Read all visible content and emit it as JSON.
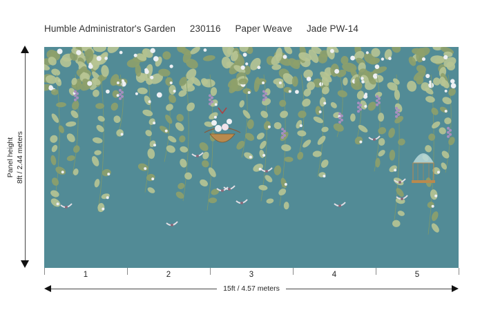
{
  "header": {
    "collection": "Humble Administrator's Garden",
    "code": "230116",
    "material": "Paper Weave",
    "colorway": "Jade PW-14"
  },
  "dimensions": {
    "height_label": "Panel height",
    "height_value": "8ft / 2.44 meters",
    "width_value": "15ft  / 4.57 meters"
  },
  "panels": [
    "1",
    "2",
    "3",
    "4",
    "5"
  ],
  "colors": {
    "background": "#528b96",
    "leaf": "#b7c493",
    "leaf_dark": "#8ea06a",
    "flower": "#eef0f4",
    "grape": "#a78fbf",
    "basket": "#b98a4e"
  }
}
